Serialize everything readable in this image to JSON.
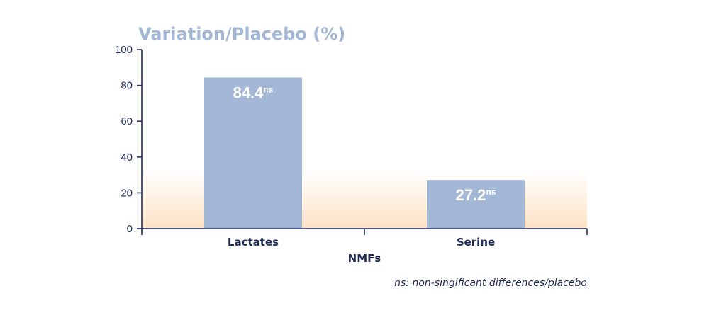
{
  "colors": {
    "bar": "#a3b8d6",
    "title": "#a3b8d6",
    "axis": "#23305f",
    "band": "#fde2c4"
  },
  "chart_data": {
    "type": "bar",
    "title": "Variation/Placebo (%)",
    "xlabel": "NMFs",
    "ylabel": "",
    "categories": [
      "Lactates",
      "Serine"
    ],
    "values": [
      84.4,
      27.2
    ],
    "value_labels": [
      "84.4",
      "27.2"
    ],
    "value_suffix": "ns",
    "ylim": [
      0,
      100
    ],
    "yticks": [
      0,
      20,
      40,
      60,
      80,
      100
    ],
    "grid": false,
    "footnote": "ns: non-singificant differences/placebo"
  }
}
